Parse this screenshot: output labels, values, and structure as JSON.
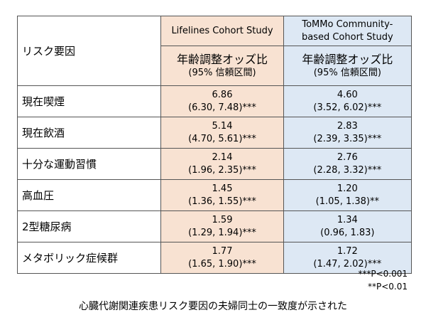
{
  "header": {
    "factor_label": "リスク要因",
    "cohort_a": [
      "Lifelines Cohort Study"
    ],
    "cohort_b": [
      "ToMMo Community-",
      "based Cohort Study"
    ],
    "stat_main": "年齢調整オッズ比",
    "stat_sub": "(95% 信頼区間)"
  },
  "rows": [
    {
      "factor": "現在喫煙",
      "a_or": "6.86",
      "a_ci": "(6.30, 7.48)***",
      "b_or": "4.60",
      "b_ci": "(3.52, 6.02)***"
    },
    {
      "factor": "現在飲酒",
      "a_or": "5.14",
      "a_ci": "(4.70, 5.61)***",
      "b_or": "2.83",
      "b_ci": "(2.39, 3.35)***"
    },
    {
      "factor": "十分な運動習慣",
      "a_or": "2.14",
      "a_ci": "(1.96, 2.35)***",
      "b_or": "2.76",
      "b_ci": "(2.28, 3.32)***"
    },
    {
      "factor": "高血圧",
      "a_or": "1.45",
      "a_ci": "(1.36, 1.55)***",
      "b_or": "1.20",
      "b_ci": "(1.05, 1.38)**"
    },
    {
      "factor": "2型糖尿病",
      "a_or": "1.59",
      "a_ci": "(1.29, 1.94)***",
      "b_or": "1.34",
      "b_ci": "(0.96, 1.83)"
    },
    {
      "factor": "メタボリック症候群",
      "a_or": "1.77",
      "a_ci": "(1.65, 1.90)***",
      "b_or": "1.72",
      "b_ci": "(1.47, 2.02)***"
    }
  ],
  "footnotes": {
    "p001": "***P<0.001",
    "p01": "**P<0.01"
  },
  "caption": "心臓代謝関連疾患リスク要因の夫婦同士の一致度が示された"
}
